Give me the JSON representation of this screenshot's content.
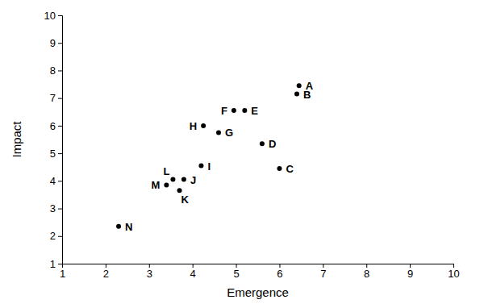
{
  "chart_data": {
    "type": "scatter",
    "x_label": "Emergence",
    "y_label": "Impact",
    "labels": [
      "A",
      "B",
      "C",
      "D",
      "E",
      "F",
      "G",
      "H",
      "I",
      "J",
      "K",
      "L",
      "M",
      "N"
    ],
    "x": [
      6.45,
      6.4,
      6.0,
      5.6,
      5.2,
      4.95,
      4.6,
      4.25,
      4.2,
      3.8,
      3.7,
      3.55,
      3.4,
      2.3
    ],
    "values": [
      7.45,
      7.15,
      4.45,
      5.35,
      6.55,
      6.55,
      5.75,
      6.0,
      4.55,
      4.05,
      3.65,
      4.05,
      3.85,
      2.35
    ],
    "color": "#000000",
    "marker": "circle",
    "xlim": [
      1,
      10
    ],
    "xticks": [
      1,
      2,
      3,
      4,
      5,
      6,
      7,
      8,
      9,
      10
    ],
    "ylim": [
      1,
      10
    ],
    "yticks": [
      1,
      2,
      3,
      4,
      5,
      6,
      7,
      8,
      9,
      10
    ],
    "grid": false
  }
}
